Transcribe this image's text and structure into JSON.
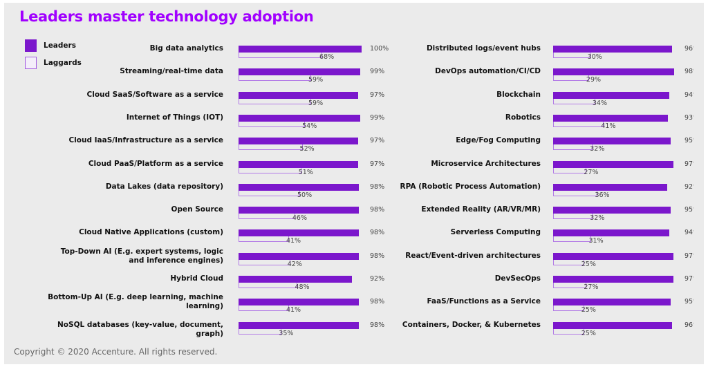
{
  "chart_data": {
    "type": "bar",
    "title": "Leaders master technology adoption",
    "legend": {
      "placement": "top-left",
      "entries": [
        "Leaders",
        "Laggards"
      ]
    },
    "colors": {
      "leaders": "#7b17cc",
      "laggards_outline": "#b27ae6",
      "title": "#a100ff"
    },
    "unit": "%",
    "xlim": [
      0,
      100
    ],
    "grid": false,
    "panels": [
      {
        "categories": [
          "Big data analytics",
          "Streaming/real-time data",
          "Cloud SaaS/Software as a service",
          "Internet of Things (IOT)",
          "Cloud IaaS/Infrastructure as a service",
          "Cloud PaaS/Platform as a service",
          "Data Lakes (data repository)",
          "Open Source",
          "Cloud Native Applications (custom)",
          "Top-Down AI (E.g. expert systems, logic and inference engines)",
          "Hybrid Cloud",
          "Bottom-Up AI (E.g. deep learning, machine learning)",
          "NoSQL databases (key-value, document, graph)"
        ],
        "series": [
          {
            "name": "Leaders",
            "values": [
              100,
              99,
              97,
              99,
              97,
              97,
              98,
              98,
              98,
              98,
              92,
              98,
              98
            ]
          },
          {
            "name": "Laggards",
            "values": [
              68,
              59,
              59,
              54,
              52,
              51,
              50,
              46,
              41,
              42,
              48,
              41,
              35
            ]
          }
        ]
      },
      {
        "categories": [
          "Distributed logs/event hubs",
          "DevOps automation/CI/CD",
          "Blockchain",
          "Robotics",
          "Edge/Fog Computing",
          "Microservice Architectures",
          "RPA (Robotic Process Automation)",
          "Extended Reality (AR/VR/MR)",
          "Serverless Computing",
          "React/Event-driven architectures",
          "DevSecOps",
          "FaaS/Functions as a Service",
          "Containers, Docker, & Kubernetes"
        ],
        "series": [
          {
            "name": "Leaders",
            "values": [
              96,
              98,
              94,
              93,
              95,
              97,
              92,
              95,
              94,
              97,
              97,
              95,
              96
            ]
          },
          {
            "name": "Laggards",
            "values": [
              30,
              29,
              34,
              41,
              32,
              27,
              36,
              32,
              31,
              25,
              27,
              25,
              25
            ]
          }
        ]
      }
    ]
  },
  "footer": {
    "copyright": "Copyright © 2020 Accenture. All rights reserved."
  }
}
